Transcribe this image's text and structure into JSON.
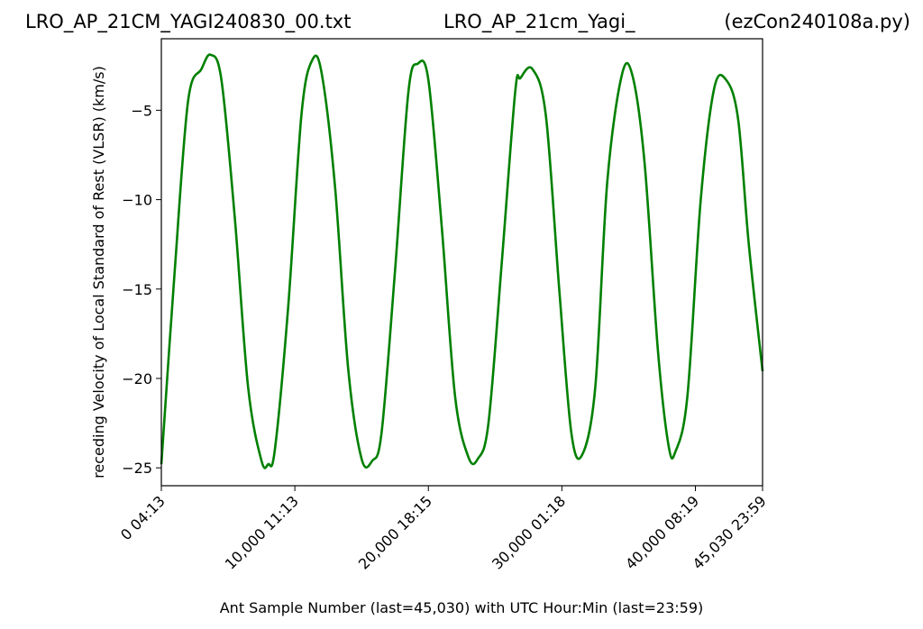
{
  "titles": {
    "left": "LRO_AP_21CM_YAGI240830_00.txt",
    "center": "LRO_AP_21cm_Yagi_",
    "right": "(ezCon240108a.py)"
  },
  "chart_data": {
    "type": "line",
    "xlabel": "Ant Sample Number (last=45,030) with UTC Hour:Min (last=23:59)",
    "ylabel": "receding Velocity of Local Standard of Rest (VLSR) (km/s)",
    "xlim": [
      0,
      45030
    ],
    "ylim": [
      -26.0,
      -1.0
    ],
    "yticks": [
      -25,
      -20,
      -15,
      -10,
      -5
    ],
    "ytick_labels": [
      "−25",
      "−20",
      "−15",
      "−10",
      "−5"
    ],
    "xticks": [
      0,
      10000,
      20000,
      30000,
      40000,
      45030
    ],
    "xtick_labels": [
      "0  04:13",
      "10,000  11:13",
      "20,000  18:15",
      "30,000  01:18",
      "40,000  08:19",
      "45,030  23:59"
    ],
    "line_color": "#008000",
    "grid": false,
    "series": [
      {
        "x": [
          0,
          1000,
          2000,
          3000,
          3700,
          4500,
          5500,
          6500,
          7500,
          8000,
          8500,
          9500,
          10500,
          11300,
          12000,
          13000,
          14000,
          15000,
          15800,
          16500,
          17500,
          18500,
          19200,
          20000,
          21000,
          22000,
          23000,
          23700,
          24500,
          25500,
          26500,
          26900,
          27800,
          28800,
          29800,
          30700,
          31500,
          32500,
          33400,
          34500,
          35300,
          36200,
          37200,
          38000,
          38500,
          39400,
          40400,
          41400,
          42300,
          43200,
          44000,
          45030
        ],
        "y": [
          -24.8,
          -14.0,
          -4.5,
          -2.7,
          -1.9,
          -3.3,
          -11.0,
          -20.5,
          -24.6,
          -24.8,
          -24.0,
          -16.0,
          -5.2,
          -2.2,
          -2.9,
          -9.2,
          -19.5,
          -24.5,
          -24.6,
          -23.0,
          -14.0,
          -4.0,
          -2.4,
          -3.3,
          -11.5,
          -21.0,
          -24.4,
          -24.5,
          -22.5,
          -13.5,
          -4.0,
          -3.2,
          -2.7,
          -5.3,
          -15.0,
          -23.0,
          -24.3,
          -20.5,
          -9.0,
          -3.0,
          -3.1,
          -8.0,
          -18.5,
          -23.8,
          -24.1,
          -21.0,
          -10.0,
          -3.8,
          -3.3,
          -5.5,
          -12.5,
          -19.6
        ]
      }
    ]
  }
}
